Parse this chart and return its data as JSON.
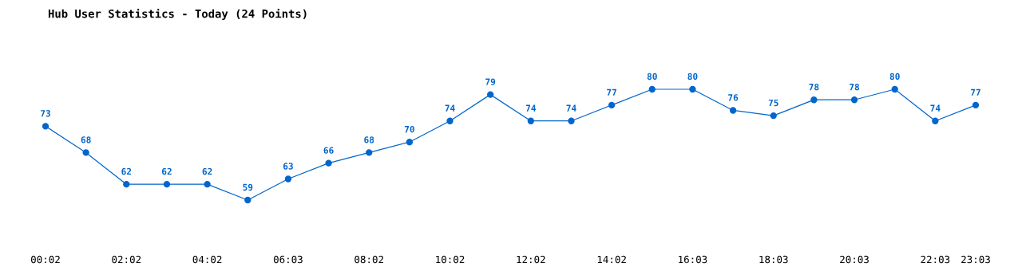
{
  "chart_data": {
    "type": "line",
    "title": "Hub User Statistics - Today (24 Points)",
    "categories": [
      "00:02",
      null,
      "02:02",
      null,
      "04:02",
      null,
      "06:03",
      null,
      "08:02",
      null,
      "10:02",
      null,
      "12:02",
      null,
      "14:02",
      null,
      "16:03",
      null,
      "18:03",
      null,
      "20:03",
      null,
      "22:03",
      "23:03"
    ],
    "series": [
      {
        "color": "#0066cc",
        "values": [
          73,
          68,
          62,
          62,
          62,
          59,
          63,
          66,
          68,
          70,
          74,
          79,
          74,
          74,
          77,
          80,
          80,
          76,
          75,
          78,
          78,
          80,
          74,
          77
        ]
      }
    ],
    "data_labels": true,
    "marker": "circle",
    "line_style": "solid",
    "grid": false,
    "legend": false,
    "tick_labels": "x"
  }
}
